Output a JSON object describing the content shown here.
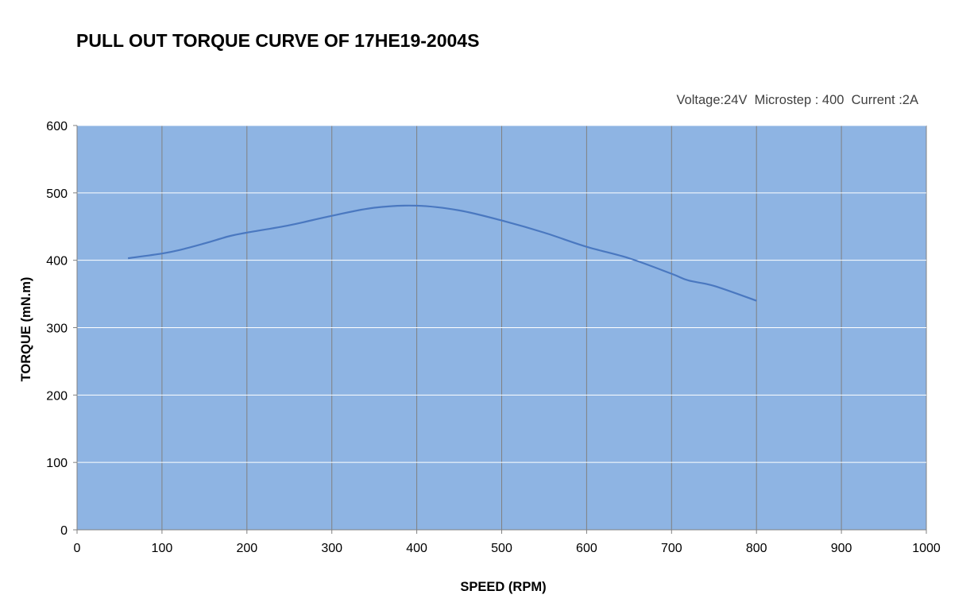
{
  "title": "PULL OUT TORQUE CURVE OF 17HE19-2004S",
  "subtitle": "Voltage:24V  Microstep : 400  Current :2A",
  "colors": {
    "plot_background": "#8eb4e3",
    "line": "#4a78c0",
    "horizontal_grid": "#ffffff",
    "vertical_grid": "#808080"
  },
  "chart_data": {
    "type": "line",
    "title": "PULL OUT TORQUE CURVE OF 17HE19-2004S",
    "subtitle": "Voltage:24V  Microstep : 400  Current :2A",
    "xlabel": "SPEED (RPM)",
    "ylabel": "TORQUE (mN.m)",
    "xlim": [
      0,
      1000
    ],
    "ylim": [
      0,
      600
    ],
    "xticks": [
      0,
      100,
      200,
      300,
      400,
      500,
      600,
      700,
      800,
      900,
      1000
    ],
    "yticks": [
      0,
      100,
      200,
      300,
      400,
      500,
      600
    ],
    "grid": true,
    "legend": "none",
    "series": [
      {
        "x": [
          60,
          100,
          120,
          150,
          180,
          200,
          250,
          300,
          350,
          400,
          450,
          500,
          550,
          600,
          650,
          700,
          720,
          750,
          800
        ],
        "values": [
          403,
          410,
          415,
          425,
          436,
          441,
          452,
          466,
          478,
          481,
          474,
          459,
          441,
          420,
          403,
          380,
          370,
          362,
          340
        ]
      }
    ]
  }
}
